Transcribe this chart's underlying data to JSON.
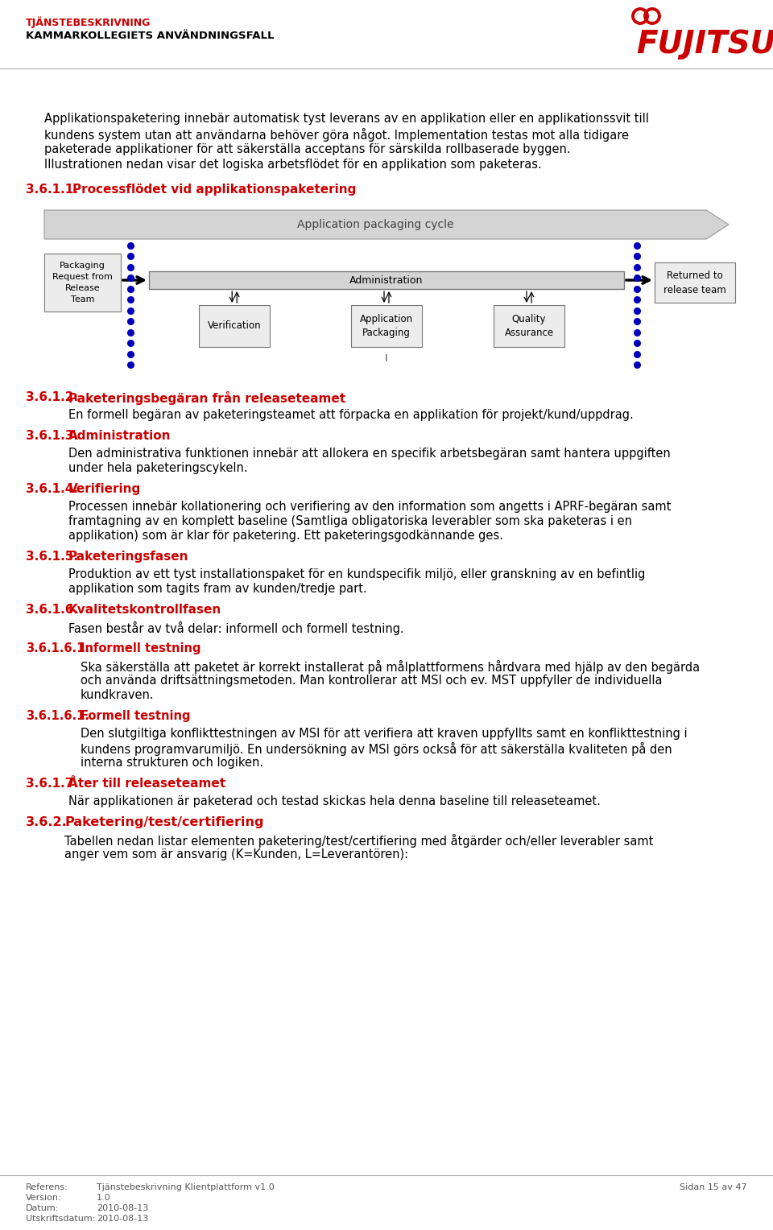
{
  "header_red": "TJÄNSTEBESKRIVNING",
  "header_black": "KAMMARKOLLEGIETS ANVÄNDNINGSFALL",
  "body_text": [
    "Applikationspaketering innebär automatisk tyst leverans av en applikation eller en applikationssvit till",
    "kundens system utan att användarna behöver göra något. Implementation testas mot alla tidigare",
    "paketerade applikationer för att säkerställa acceptans för särskilda rollbaserade byggen.",
    "Illustrationen nedan visar det logiska arbetsflödet för en applikation som paketeras."
  ],
  "section_num_1": "3.6.1.1.",
  "section_title_1": "Processflödet vid applikationspaketering",
  "diagram_label": "Application packaging cycle",
  "box_packaging": "Packaging\nRequest from\nRelease\nTeam",
  "box_admin": "Administration",
  "box_verification": "Verification",
  "box_apppack": "Application\nPackaging",
  "box_quality": "Quality\nAssurance",
  "box_returned": "Returned to\nrelease team",
  "sections": [
    {
      "num": "3.6.1.2.",
      "title": "Paketeringsbegäran från releaseteamet",
      "text": "En formell begäran av paketeringsteamet att förpacka en applikation för projekt/kund/uppdrag.",
      "indent": 1
    },
    {
      "num": "3.6.1.3.",
      "title": "Administration",
      "text": "Den administrativa funktionen innebär att allokera en specifik arbetsbegäran samt hantera uppgiften\nunder hela paketeringscykeln.",
      "indent": 1
    },
    {
      "num": "3.6.1.4.",
      "title": "Verifiering",
      "text": "Processen innebär kollationering och verifiering av den information som angetts i APRF-begäran samt\nframtagning av en komplett baseline (Samtliga obligatoriska leverabler som ska paketeras i en\napplikation) som är klar för paketering. Ett paketeringsgodkännande ges.",
      "indent": 1
    },
    {
      "num": "3.6.1.5.",
      "title": "Paketeringsfasen",
      "text": "Produktion av ett tyst installationspaket för en kundspecifik miljö, eller granskning av en befintlig\napplikation som tagits fram av kunden/tredje part.",
      "indent": 1
    },
    {
      "num": "3.6.1.6.",
      "title": "Kvalitetskontrollfasen",
      "text": "Fasen består av två delar: informell och formell testning.",
      "indent": 1
    },
    {
      "num": "3.6.1.6.1.",
      "title": "Informell testning",
      "text": "Ska säkerställa att paketet är korrekt installerat på målplattformens hårdvara med hjälp av den begärda\noch använda driftsättningsmetoden. Man kontrollerar att MSI och ev. MST uppfyller de individuella\nkundkraven.",
      "indent": 2
    },
    {
      "num": "3.6.1.6.1.",
      "title": "Formell testning",
      "text": "Den slutgiltiga konflikttestningen av MSI för att verifiera att kraven uppfyllts samt en konflikttestning i\nkundens programvarumiljö. En undersökning av MSI görs också för att säkerställa kvaliteten på den\ninterna strukturen och logiken.",
      "indent": 2
    },
    {
      "num": "3.6.1.7.",
      "title": "Åter till releaseteamet",
      "text": "När applikationen är paketerad och testad skickas hela denna baseline till releaseteamet.",
      "indent": 1
    },
    {
      "num": "3.6.2.",
      "title": "Paketering/test/certifiering",
      "text": "Tabellen nedan listar elementen paketering/test/certifiering med åtgärder och/eller leverabler samt\nanger vem som är ansvarig (K=Kunden, L=Leverantören):",
      "indent": 0
    }
  ],
  "footer_col1_labels": [
    "Referens:",
    "Version:",
    "Datum:",
    "Utskriftsdatum:"
  ],
  "footer_col1_values": [
    "Tjänstebeskrivning Klientplattform v1.0",
    "1.0",
    "2010-08-13",
    "2010-08-13"
  ],
  "footer_right": "Sidan 15 av 47",
  "bg_color": "#ffffff",
  "red_color": "#cc0000",
  "text_color": "#000000",
  "blue_color": "#0000bb",
  "body_fontsize": 10.5,
  "section_heading_fontsize": 11,
  "section_body_fontsize": 10.5,
  "sub_section_heading_fontsize": 10.5
}
